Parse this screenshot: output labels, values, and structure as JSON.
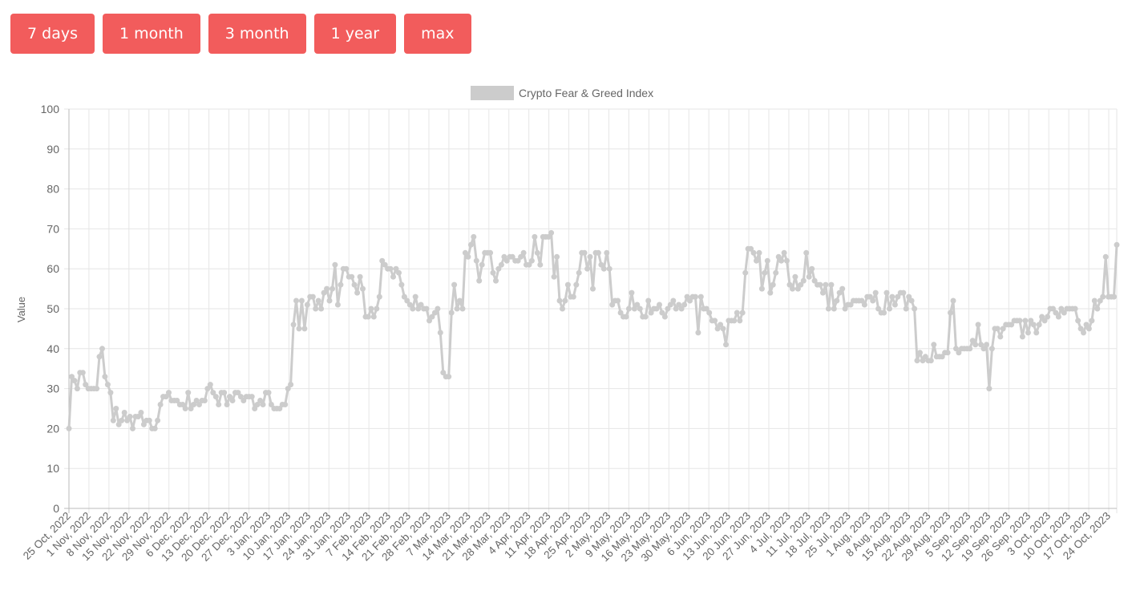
{
  "range_buttons": [
    "7 days",
    "1 month",
    "3 month",
    "1 year",
    "max"
  ],
  "colors": {
    "button_bg": "#f25c5c",
    "button_text": "#ffffff",
    "series": "#cccccc",
    "grid": "#e6e6e6",
    "axis_text": "#666666"
  },
  "chart_data": {
    "type": "line",
    "title": "",
    "xlabel": "",
    "ylabel": "Value",
    "ylim": [
      0,
      100
    ],
    "yticks": [
      0,
      10,
      20,
      30,
      40,
      50,
      60,
      70,
      80,
      90,
      100
    ],
    "grid": true,
    "legend": "top-center",
    "x_tick_labels": [
      "25 Oct, 2022",
      "1 Nov, 2022",
      "8 Nov, 2022",
      "15 Nov, 2022",
      "22 Nov, 2022",
      "29 Nov, 2022",
      "6 Dec, 2022",
      "13 Dec, 2022",
      "20 Dec, 2022",
      "27 Dec, 2022",
      "3 Jan, 2023",
      "10 Jan, 2023",
      "17 Jan, 2023",
      "24 Jan, 2023",
      "31 Jan, 2023",
      "7 Feb, 2023",
      "14 Feb, 2023",
      "21 Feb, 2023",
      "28 Feb, 2023",
      "7 Mar, 2023",
      "14 Mar, 2023",
      "21 Mar, 2023",
      "28 Mar, 2023",
      "4 Apr, 2023",
      "11 Apr, 2023",
      "18 Apr, 2023",
      "25 Apr, 2023",
      "2 May, 2023",
      "9 May, 2023",
      "16 May, 2023",
      "23 May, 2023",
      "30 May, 2023",
      "6 Jun, 2023",
      "13 Jun, 2023",
      "20 Jun, 2023",
      "27 Jun, 2023",
      "4 Jul, 2023",
      "11 Jul, 2023",
      "18 Jul, 2023",
      "25 Jul, 2023",
      "1 Aug, 2023",
      "8 Aug, 2023",
      "15 Aug, 2023",
      "22 Aug, 2023",
      "29 Aug, 2023",
      "5 Sep, 2023",
      "12 Sep, 2023",
      "19 Sep, 2023",
      "26 Sep, 2023",
      "3 Oct, 2023",
      "10 Oct, 2023",
      "17 Oct, 2023",
      "24 Oct, 2023"
    ],
    "series": [
      {
        "name": "Crypto Fear & Greed Index",
        "values": [
          20,
          33,
          32,
          30,
          34,
          34,
          31,
          30,
          30,
          30,
          30,
          38,
          40,
          33,
          31,
          29,
          22,
          25,
          21,
          22,
          24,
          22,
          23,
          20,
          23,
          23,
          24,
          21,
          22,
          22,
          20,
          20,
          22,
          26,
          28,
          28,
          29,
          27,
          27,
          27,
          26,
          26,
          25,
          29,
          25,
          26,
          27,
          26,
          27,
          27,
          30,
          31,
          29,
          28,
          26,
          29,
          29,
          26,
          28,
          27,
          29,
          29,
          28,
          27,
          28,
          28,
          28,
          25,
          26,
          27,
          26,
          29,
          29,
          26,
          25,
          25,
          25,
          26,
          26,
          30,
          31,
          46,
          52,
          45,
          52,
          45,
          51,
          53,
          53,
          50,
          52,
          50,
          54,
          55,
          52,
          55,
          61,
          51,
          56,
          60,
          60,
          58,
          58,
          56,
          54,
          58,
          55,
          48,
          48,
          50,
          48,
          50,
          53,
          62,
          61,
          60,
          60,
          58,
          60,
          59,
          56,
          53,
          52,
          51,
          50,
          53,
          50,
          51,
          50,
          50,
          47,
          48,
          49,
          50,
          44,
          34,
          33,
          33,
          49,
          56,
          50,
          52,
          50,
          64,
          63,
          66,
          68,
          62,
          57,
          61,
          64,
          64,
          64,
          59,
          57,
          60,
          61,
          63,
          62,
          63,
          63,
          62,
          62,
          63,
          64,
          61,
          61,
          62,
          68,
          64,
          61,
          68,
          68,
          68,
          69,
          58,
          63,
          52,
          50,
          52,
          56,
          53,
          53,
          56,
          59,
          64,
          64,
          60,
          63,
          55,
          64,
          64,
          61,
          60,
          64,
          60,
          51,
          52,
          52,
          49,
          48,
          48,
          50,
          54,
          50,
          51,
          50,
          48,
          48,
          52,
          49,
          50,
          50,
          51,
          49,
          48,
          50,
          51,
          52,
          50,
          51,
          50,
          51,
          53,
          52,
          53,
          53,
          44,
          53,
          50,
          50,
          49,
          47,
          47,
          45,
          46,
          45,
          41,
          47,
          47,
          47,
          49,
          47,
          49,
          59,
          65,
          65,
          64,
          62,
          64,
          55,
          59,
          62,
          54,
          56,
          59,
          63,
          62,
          64,
          62,
          56,
          55,
          58,
          55,
          56,
          57,
          64,
          58,
          60,
          57,
          56,
          56,
          54,
          56,
          50,
          56,
          50,
          52,
          54,
          55,
          50,
          51,
          51,
          52,
          52,
          52,
          52,
          51,
          53,
          53,
          52,
          54,
          50,
          49,
          49,
          54,
          50,
          53,
          51,
          53,
          54,
          54,
          50,
          53,
          52,
          50,
          37,
          39,
          37,
          38,
          37,
          37,
          41,
          38,
          38,
          38,
          39,
          39,
          49,
          52,
          40,
          39,
          40,
          40,
          40,
          40,
          42,
          41,
          46,
          41,
          40,
          41,
          30,
          40,
          45,
          45,
          43,
          45,
          46,
          46,
          46,
          47,
          47,
          47,
          43,
          47,
          44,
          47,
          46,
          44,
          46,
          48,
          47,
          48,
          50,
          50,
          49,
          48,
          50,
          49,
          50,
          50,
          50,
          50,
          47,
          45,
          44,
          46,
          45,
          47,
          52,
          50,
          52,
          53,
          63,
          53,
          53,
          53,
          66
        ]
      }
    ]
  }
}
